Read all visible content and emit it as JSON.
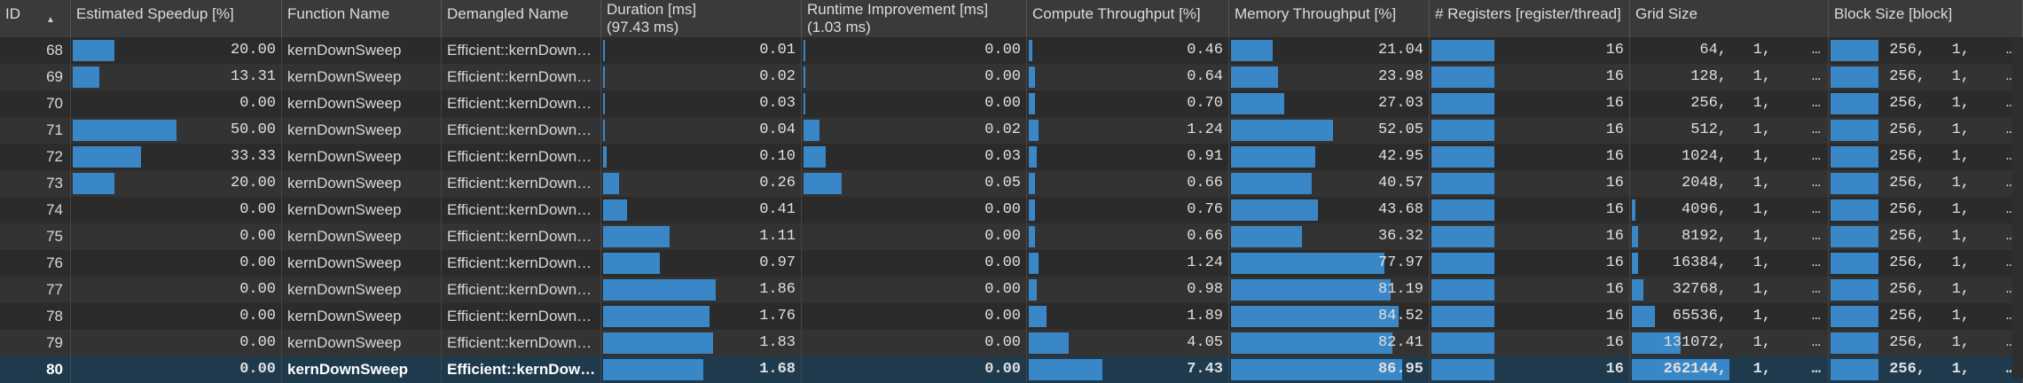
{
  "headers": [
    {
      "key": "id",
      "label": "ID"
    },
    {
      "key": "speedup",
      "label": "Estimated Speedup [%]"
    },
    {
      "key": "func",
      "label": "Function Name"
    },
    {
      "key": "demangled",
      "label": "Demangled Name"
    },
    {
      "key": "duration",
      "label": "Duration [ms]",
      "sub": "(97.43 ms)"
    },
    {
      "key": "runtime",
      "label": "Runtime Improvement [ms]",
      "sub": "(1.03 ms)"
    },
    {
      "key": "compute",
      "label": "Compute Throughput [%]"
    },
    {
      "key": "memory",
      "label": "Memory Throughput [%]"
    },
    {
      "key": "regs",
      "label": "# Registers [register/thread]"
    },
    {
      "key": "grid",
      "label": "Grid Size"
    },
    {
      "key": "block",
      "label": "Block Size [block]"
    }
  ],
  "sort_icon": "sort-ascending-icon",
  "rows": [
    {
      "id": "68",
      "speedup": "20.00",
      "func": "kernDownSweep",
      "demangled": "Efficient::kernDownSweep",
      "duration": "0.01",
      "runtime": "0.00",
      "compute": "0.46",
      "memory": "21.04",
      "regs": "16",
      "grid": [
        "64,",
        "1,",
        "…"
      ],
      "block": [
        "256,",
        "1,",
        "…"
      ]
    },
    {
      "id": "69",
      "speedup": "13.31",
      "func": "kernDownSweep",
      "demangled": "Efficient::kernDownSweep",
      "duration": "0.02",
      "runtime": "0.00",
      "compute": "0.64",
      "memory": "23.98",
      "regs": "16",
      "grid": [
        "128,",
        "1,",
        "…"
      ],
      "block": [
        "256,",
        "1,",
        "…"
      ]
    },
    {
      "id": "70",
      "speedup": "0.00",
      "func": "kernDownSweep",
      "demangled": "Efficient::kernDownSweep",
      "duration": "0.03",
      "runtime": "0.00",
      "compute": "0.70",
      "memory": "27.03",
      "regs": "16",
      "grid": [
        "256,",
        "1,",
        "…"
      ],
      "block": [
        "256,",
        "1,",
        "…"
      ]
    },
    {
      "id": "71",
      "speedup": "50.00",
      "func": "kernDownSweep",
      "demangled": "Efficient::kernDownSweep",
      "duration": "0.04",
      "runtime": "0.02",
      "compute": "1.24",
      "memory": "52.05",
      "regs": "16",
      "grid": [
        "512,",
        "1,",
        "…"
      ],
      "block": [
        "256,",
        "1,",
        "…"
      ]
    },
    {
      "id": "72",
      "speedup": "33.33",
      "func": "kernDownSweep",
      "demangled": "Efficient::kernDownSweep",
      "duration": "0.10",
      "runtime": "0.03",
      "compute": "0.91",
      "memory": "42.95",
      "regs": "16",
      "grid": [
        "1024,",
        "1,",
        "…"
      ],
      "block": [
        "256,",
        "1,",
        "…"
      ]
    },
    {
      "id": "73",
      "speedup": "20.00",
      "func": "kernDownSweep",
      "demangled": "Efficient::kernDownSweep",
      "duration": "0.26",
      "runtime": "0.05",
      "compute": "0.66",
      "memory": "40.57",
      "regs": "16",
      "grid": [
        "2048,",
        "1,",
        "…"
      ],
      "block": [
        "256,",
        "1,",
        "…"
      ]
    },
    {
      "id": "74",
      "speedup": "0.00",
      "func": "kernDownSweep",
      "demangled": "Efficient::kernDownSweep",
      "duration": "0.41",
      "runtime": "0.00",
      "compute": "0.76",
      "memory": "43.68",
      "regs": "16",
      "grid": [
        "4096,",
        "1,",
        "…"
      ],
      "block": [
        "256,",
        "1,",
        "…"
      ]
    },
    {
      "id": "75",
      "speedup": "0.00",
      "func": "kernDownSweep",
      "demangled": "Efficient::kernDownSweep",
      "duration": "1.11",
      "runtime": "0.00",
      "compute": "0.66",
      "memory": "36.32",
      "regs": "16",
      "grid": [
        "8192,",
        "1,",
        "…"
      ],
      "block": [
        "256,",
        "1,",
        "…"
      ]
    },
    {
      "id": "76",
      "speedup": "0.00",
      "func": "kernDownSweep",
      "demangled": "Efficient::kernDownSweep",
      "duration": "0.97",
      "runtime": "0.00",
      "compute": "1.24",
      "memory": "77.97",
      "regs": "16",
      "grid": [
        "16384,",
        "1,",
        "…"
      ],
      "block": [
        "256,",
        "1,",
        "…"
      ]
    },
    {
      "id": "77",
      "speedup": "0.00",
      "func": "kernDownSweep",
      "demangled": "Efficient::kernDownSweep",
      "duration": "1.86",
      "runtime": "0.00",
      "compute": "0.98",
      "memory": "81.19",
      "regs": "16",
      "grid": [
        "32768,",
        "1,",
        "…"
      ],
      "block": [
        "256,",
        "1,",
        "…"
      ]
    },
    {
      "id": "78",
      "speedup": "0.00",
      "func": "kernDownSweep",
      "demangled": "Efficient::kernDownSweep",
      "duration": "1.76",
      "runtime": "0.00",
      "compute": "1.89",
      "memory": "84.52",
      "regs": "16",
      "grid": [
        "65536,",
        "1,",
        "…"
      ],
      "block": [
        "256,",
        "1,",
        "…"
      ]
    },
    {
      "id": "79",
      "speedup": "0.00",
      "func": "kernDownSweep",
      "demangled": "Efficient::kernDownSweep",
      "duration": "1.83",
      "runtime": "0.00",
      "compute": "4.05",
      "memory": "82.41",
      "regs": "16",
      "grid": [
        "131072,",
        "1,",
        "…"
      ],
      "block": [
        "256,",
        "1,",
        "…"
      ]
    },
    {
      "id": "80",
      "speedup": "0.00",
      "func": "kernDownSweep",
      "demangled": "Efficient::kernDownSweep",
      "duration": "1.68",
      "runtime": "0.00",
      "compute": "7.43",
      "memory": "86.95",
      "regs": "16",
      "grid": [
        "262144,",
        "1,",
        "…"
      ],
      "block": [
        "256,",
        "1,",
        "…"
      ],
      "selected": true
    }
  ],
  "bar_levels": {
    "speedup": [
      0.2,
      0.13,
      0,
      0.5,
      0.33,
      0.2,
      0,
      0,
      0,
      0,
      0,
      0,
      0
    ],
    "duration": [
      0.003,
      0.005,
      0.008,
      0.01,
      0.02,
      0.08,
      0.12,
      0.34,
      0.29,
      0.57,
      0.54,
      0.56,
      0.51
    ],
    "runtime": [
      0.005,
      0.005,
      0.005,
      0.07,
      0.1,
      0.17,
      0,
      0,
      0,
      0,
      0,
      0,
      0
    ],
    "compute": [
      0.02,
      0.03,
      0.03,
      0.05,
      0.04,
      0.03,
      0.03,
      0.03,
      0.05,
      0.04,
      0.09,
      0.2,
      0.37
    ],
    "memory": [
      0.21,
      0.24,
      0.27,
      0.52,
      0.43,
      0.41,
      0.44,
      0.36,
      0.78,
      0.81,
      0.85,
      0.82,
      0.87
    ],
    "regs": [
      0.32,
      0.32,
      0.32,
      0.32,
      0.32,
      0.32,
      0.32,
      0.32,
      0.32,
      0.32,
      0.32,
      0.32,
      0.32
    ],
    "grid": [
      0.0,
      0.0,
      0.0,
      0.0,
      0.0,
      0.0,
      0.02,
      0.03,
      0.03,
      0.06,
      0.12,
      0.25,
      0.5
    ],
    "block": [
      0.25,
      0.25,
      0.25,
      0.25,
      0.25,
      0.25,
      0.25,
      0.25,
      0.25,
      0.25,
      0.25,
      0.25,
      0.25
    ]
  },
  "colors": {
    "bar": "#3a87c8",
    "selected_row": "#1f3a4d",
    "header_bg": "#3a3a3a"
  }
}
